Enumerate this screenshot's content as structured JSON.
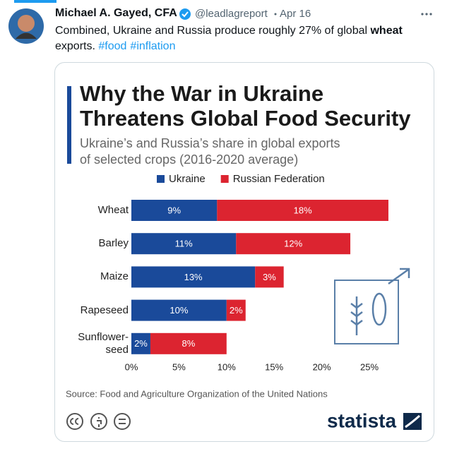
{
  "tweet": {
    "name": "Michael A. Gayed, CFA",
    "handle": "@leadlagreport",
    "date": "Apr 16",
    "text_segments": [
      "Combined, Ukraine and Russia produce roughly 27% of global ",
      "wheat",
      " exports.",
      "#food",
      "#inflation"
    ]
  },
  "chart_data": {
    "type": "bar",
    "orientation": "horizontal",
    "stacked": true,
    "title": [
      "Why the War in Ukraine",
      "Threatens Global Food Security"
    ],
    "subtitle": [
      "Ukraine’s and Russia’s share in global exports",
      "of selected crops (2016-2020 average)"
    ],
    "categories": [
      "Wheat",
      "Barley",
      "Maize",
      "Rapeseed",
      "Sunflower-seed"
    ],
    "series": [
      {
        "name": "Ukraine",
        "color": "#1a4a9a",
        "values": [
          9,
          11,
          13,
          10,
          2
        ],
        "value_labels": [
          "9%",
          "11%",
          "13%",
          "10%",
          "2%"
        ]
      },
      {
        "name": "Russian Federation",
        "color": "#dc2430",
        "values": [
          18,
          12,
          3,
          2,
          8
        ],
        "value_labels": [
          "18%",
          "12%",
          "3%",
          "2%",
          "8%"
        ]
      }
    ],
    "xlim": [
      0,
      25
    ],
    "xticks": [
      {
        "value": 0,
        "label": "0%"
      },
      {
        "value": 5,
        "label": "5%"
      },
      {
        "value": 10,
        "label": "10%"
      },
      {
        "value": 15,
        "label": "15%"
      },
      {
        "value": 20,
        "label": "20%"
      },
      {
        "value": 25,
        "label": "25%"
      }
    ],
    "legend": "top",
    "source": "Source: Food and Agriculture Organization of the United Nations",
    "brand": "statista"
  }
}
